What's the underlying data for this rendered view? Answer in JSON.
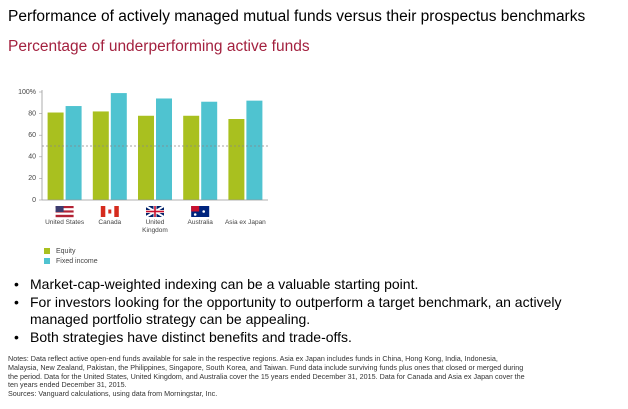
{
  "chart_data": {
    "type": "bar",
    "title": "Performance of actively managed mutual funds versus their prospectus benchmarks",
    "subtitle": "Percentage of underperforming active funds",
    "categories": [
      "United States",
      "Canada",
      "United Kingdom",
      "Australia",
      "Asia ex Japan"
    ],
    "series": [
      {
        "name": "Equity",
        "color": "#a9c01f",
        "values": [
          81,
          82,
          78,
          78,
          75
        ]
      },
      {
        "name": "Fixed income",
        "color": "#4fc3d0",
        "values": [
          87,
          99,
          94,
          91,
          92
        ]
      }
    ],
    "ylim": [
      0,
      100
    ],
    "yticks": [
      0,
      20,
      40,
      60,
      80,
      {
        "value": 100,
        "label": "100%"
      }
    ],
    "reference_line": 50,
    "bullets": [
      "Market-cap-weighted indexing can be a valuable starting point.",
      "For investors looking for the opportunity to outperform a target benchmark, an actively managed portfolio strategy can be appealing.",
      "Both strategies have distinct benefits and trade-offs."
    ],
    "notes": [
      "Notes: Data reflect active open-end funds available for sale in the respective regions. Asia ex Japan includes funds in China, Hong Kong, India, Indonesia,",
      "Malaysia, New Zealand, Pakistan, the Philippines, Singapore, South Korea, and Taiwan. Fund data include surviving funds plus ones that closed or merged during",
      "the period. Data for the United States, United Kingdom, and Australia cover the 15 years ended December 31, 2015. Data for Canada and Asia ex Japan cover the",
      "ten years ended December 31, 2015.",
      "Sources: Vanguard calculations, using data from Morningstar, Inc."
    ]
  }
}
